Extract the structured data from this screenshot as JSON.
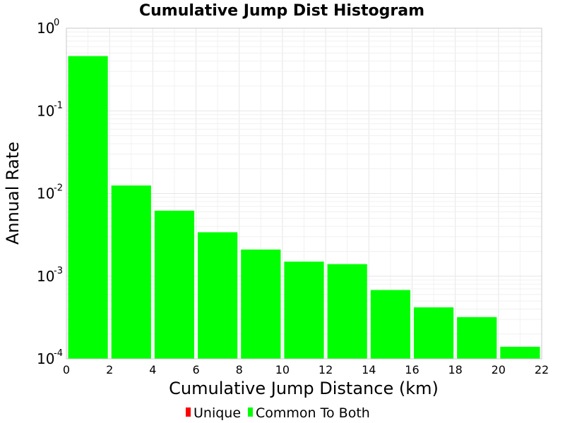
{
  "chart_data": {
    "type": "bar",
    "title": "Cumulative Jump Dist Histogram",
    "xlabel": "Cumulative Jump Distance (km)",
    "ylabel": "Annual Rate",
    "yscale": "log",
    "xlim": [
      0,
      22
    ],
    "ylim": [
      0.0001,
      1
    ],
    "xticks": [
      "0",
      "2",
      "4",
      "6",
      "8",
      "10",
      "12",
      "14",
      "16",
      "18",
      "20",
      "22"
    ],
    "yticks": [
      {
        "base": "10",
        "exp": "0",
        "value": 1
      },
      {
        "base": "10",
        "exp": "-1",
        "value": 0.1
      },
      {
        "base": "10",
        "exp": "-2",
        "value": 0.01
      },
      {
        "base": "10",
        "exp": "-3",
        "value": 0.001
      },
      {
        "base": "10",
        "exp": "-4",
        "value": 0.0001
      }
    ],
    "grid": true,
    "legend_position": "bottom-center",
    "series": [
      {
        "name": "Unique",
        "color": "#ff0000",
        "bins": []
      },
      {
        "name": "Common To Both",
        "color": "#00ff00",
        "bins": [
          {
            "x_start": 0,
            "x_end": 2,
            "value": 0.46
          },
          {
            "x_start": 2,
            "x_end": 4,
            "value": 0.0125
          },
          {
            "x_start": 4,
            "x_end": 6,
            "value": 0.0062
          },
          {
            "x_start": 6,
            "x_end": 8,
            "value": 0.0034
          },
          {
            "x_start": 8,
            "x_end": 10,
            "value": 0.0021
          },
          {
            "x_start": 10,
            "x_end": 12,
            "value": 0.0015
          },
          {
            "x_start": 12,
            "x_end": 14,
            "value": 0.0014
          },
          {
            "x_start": 14,
            "x_end": 16,
            "value": 0.00068
          },
          {
            "x_start": 16,
            "x_end": 18,
            "value": 0.00042
          },
          {
            "x_start": 18,
            "x_end": 20,
            "value": 0.00032
          },
          {
            "x_start": 20,
            "x_end": 22,
            "value": 0.00014
          }
        ]
      }
    ]
  }
}
